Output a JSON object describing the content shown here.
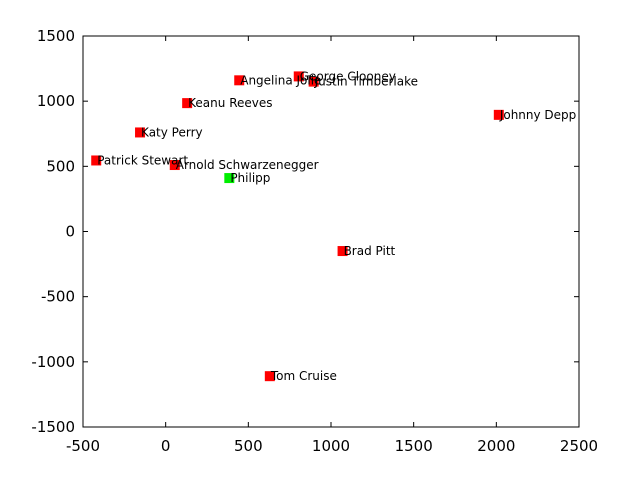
{
  "chart_data": {
    "type": "scatter",
    "title": "",
    "xlabel": "",
    "ylabel": "",
    "xlim": [
      -500,
      2500
    ],
    "ylim": [
      -1500,
      1500
    ],
    "xticks": [
      -500,
      0,
      500,
      1000,
      1500,
      2000,
      2500
    ],
    "yticks": [
      -1500,
      -1000,
      -500,
      0,
      500,
      1000,
      1500
    ],
    "grid": false,
    "legend": "none",
    "marker": "square",
    "colors": {
      "default": "#ff0000",
      "highlight": "#00ee00",
      "axis": "#000000"
    },
    "points": [
      {
        "label": "George Clooney",
        "x": 805,
        "y": 1190,
        "highlight": false
      },
      {
        "label": "Justin Timberlake",
        "x": 895,
        "y": 1150,
        "highlight": false
      },
      {
        "label": "Angelina Jolie",
        "x": 445,
        "y": 1160,
        "highlight": false
      },
      {
        "label": "Keanu Reeves",
        "x": 130,
        "y": 985,
        "highlight": false
      },
      {
        "label": "Johnny Depp",
        "x": 2015,
        "y": 895,
        "highlight": false
      },
      {
        "label": "Katy Perry",
        "x": -155,
        "y": 760,
        "highlight": false
      },
      {
        "label": "Patrick Stewart",
        "x": -420,
        "y": 545,
        "highlight": false
      },
      {
        "label": "Arnold Schwarzenegger",
        "x": 55,
        "y": 510,
        "highlight": false
      },
      {
        "label": "Philipp",
        "x": 385,
        "y": 410,
        "highlight": true
      },
      {
        "label": "Brad Pitt",
        "x": 1070,
        "y": -150,
        "highlight": false
      },
      {
        "label": "Tom Cruise",
        "x": 630,
        "y": -1110,
        "highlight": false
      }
    ]
  }
}
